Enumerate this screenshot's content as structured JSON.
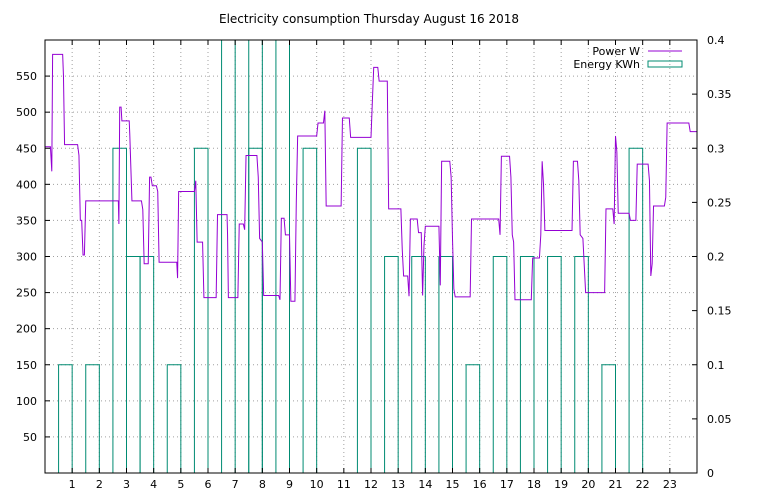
{
  "chart_data": {
    "type": "line",
    "title": "Electricity consumption Thursday August 16 2018",
    "grid": true,
    "legend_placement": "top-right",
    "x_ticks": [
      "1",
      "2",
      "3",
      "4",
      "5",
      "6",
      "7",
      "8",
      "9",
      "10",
      "11",
      "12",
      "13",
      "14",
      "15",
      "16",
      "17",
      "18",
      "19",
      "20",
      "21",
      "22",
      "23"
    ],
    "xlim": [
      0,
      24
    ],
    "y_ticks": [
      "50",
      "100",
      "150",
      "200",
      "250",
      "300",
      "350",
      "400",
      "450",
      "500",
      "550"
    ],
    "ylim": [
      0,
      600
    ],
    "y2_ticks": [
      "0",
      "0.05",
      "0.1",
      "0.15",
      "0.2",
      "0.25",
      "0.3",
      "0.35",
      "0.4"
    ],
    "y2lim": [
      0,
      0.4
    ],
    "series": [
      {
        "name": "Power W",
        "color": "#9400d3",
        "axis": "y",
        "points": [
          [
            0.0,
            452
          ],
          [
            0.2,
            452
          ],
          [
            0.25,
            418
          ],
          [
            0.28,
            580
          ],
          [
            0.65,
            580
          ],
          [
            0.68,
            550
          ],
          [
            0.72,
            455
          ],
          [
            1.2,
            455
          ],
          [
            1.25,
            440
          ],
          [
            1.3,
            350
          ],
          [
            1.35,
            350
          ],
          [
            1.4,
            302
          ],
          [
            1.45,
            302
          ],
          [
            1.5,
            377
          ],
          [
            2.7,
            377
          ],
          [
            2.72,
            345
          ],
          [
            2.75,
            507
          ],
          [
            2.8,
            507
          ],
          [
            2.83,
            488
          ],
          [
            3.1,
            488
          ],
          [
            3.12,
            470
          ],
          [
            3.2,
            377
          ],
          [
            3.55,
            377
          ],
          [
            3.6,
            365
          ],
          [
            3.65,
            290
          ],
          [
            3.8,
            290
          ],
          [
            3.85,
            410
          ],
          [
            3.9,
            410
          ],
          [
            3.95,
            398
          ],
          [
            4.1,
            398
          ],
          [
            4.15,
            390
          ],
          [
            4.2,
            292
          ],
          [
            4.85,
            292
          ],
          [
            4.88,
            270
          ],
          [
            4.92,
            390
          ],
          [
            5.5,
            390
          ],
          [
            5.55,
            405
          ],
          [
            5.6,
            320
          ],
          [
            5.8,
            320
          ],
          [
            5.85,
            243
          ],
          [
            6.3,
            243
          ],
          [
            6.35,
            358
          ],
          [
            6.7,
            358
          ],
          [
            6.72,
            330
          ],
          [
            6.75,
            243
          ],
          [
            7.1,
            243
          ],
          [
            7.15,
            345
          ],
          [
            7.3,
            345
          ],
          [
            7.35,
            337
          ],
          [
            7.4,
            440
          ],
          [
            7.8,
            440
          ],
          [
            7.85,
            410
          ],
          [
            7.9,
            325
          ],
          [
            8.0,
            320
          ],
          [
            8.05,
            246
          ],
          [
            8.6,
            246
          ],
          [
            8.65,
            240
          ],
          [
            8.7,
            353
          ],
          [
            8.8,
            353
          ],
          [
            8.85,
            330
          ],
          [
            9.0,
            330
          ],
          [
            9.05,
            238
          ],
          [
            9.2,
            238
          ],
          [
            9.25,
            375
          ],
          [
            9.3,
            467
          ],
          [
            10.0,
            467
          ],
          [
            10.05,
            485
          ],
          [
            10.25,
            485
          ],
          [
            10.3,
            502
          ],
          [
            10.35,
            370
          ],
          [
            10.9,
            370
          ],
          [
            10.95,
            492
          ],
          [
            11.2,
            492
          ],
          [
            11.25,
            465
          ],
          [
            12.0,
            465
          ],
          [
            12.05,
            515
          ],
          [
            12.1,
            562
          ],
          [
            12.25,
            562
          ],
          [
            12.3,
            543
          ],
          [
            12.6,
            543
          ],
          [
            12.65,
            366
          ],
          [
            13.1,
            366
          ],
          [
            13.15,
            310
          ],
          [
            13.2,
            273
          ],
          [
            13.35,
            273
          ],
          [
            13.4,
            245
          ],
          [
            13.45,
            352
          ],
          [
            13.7,
            352
          ],
          [
            13.75,
            333
          ],
          [
            13.85,
            333
          ],
          [
            13.9,
            246
          ],
          [
            13.95,
            315
          ],
          [
            14.0,
            342
          ],
          [
            14.5,
            342
          ],
          [
            14.55,
            260
          ],
          [
            14.6,
            432
          ],
          [
            14.9,
            432
          ],
          [
            14.95,
            410
          ],
          [
            15.0,
            325
          ],
          [
            15.05,
            255
          ],
          [
            15.1,
            244
          ],
          [
            15.65,
            244
          ],
          [
            15.7,
            352
          ],
          [
            16.7,
            352
          ],
          [
            16.75,
            330
          ],
          [
            16.8,
            439
          ],
          [
            17.1,
            439
          ],
          [
            17.15,
            410
          ],
          [
            17.2,
            330
          ],
          [
            17.25,
            320
          ],
          [
            17.3,
            240
          ],
          [
            17.9,
            240
          ],
          [
            17.95,
            298
          ],
          [
            18.2,
            298
          ],
          [
            18.25,
            330
          ],
          [
            18.3,
            432
          ],
          [
            18.35,
            400
          ],
          [
            18.4,
            336
          ],
          [
            19.4,
            336
          ],
          [
            19.45,
            432
          ],
          [
            19.6,
            432
          ],
          [
            19.65,
            405
          ],
          [
            19.7,
            330
          ],
          [
            19.8,
            325
          ],
          [
            19.9,
            250
          ],
          [
            20.6,
            250
          ],
          [
            20.65,
            366
          ],
          [
            20.9,
            366
          ],
          [
            20.95,
            345
          ],
          [
            21.0,
            467
          ],
          [
            21.05,
            445
          ],
          [
            21.1,
            360
          ],
          [
            21.5,
            360
          ],
          [
            21.55,
            350
          ],
          [
            21.75,
            350
          ],
          [
            21.8,
            428
          ],
          [
            22.2,
            428
          ],
          [
            22.25,
            405
          ],
          [
            22.3,
            273
          ],
          [
            22.35,
            290
          ],
          [
            22.4,
            370
          ],
          [
            22.8,
            370
          ],
          [
            22.85,
            382
          ],
          [
            22.9,
            485
          ],
          [
            23.7,
            485
          ],
          [
            23.75,
            473
          ],
          [
            24.0,
            473
          ]
        ]
      },
      {
        "name": "Energy KWh",
        "color": "#008b72",
        "axis": "y2",
        "bars": [
          {
            "x": 1,
            "value": 0.1
          },
          {
            "x": 2,
            "value": 0.1
          },
          {
            "x": 3,
            "value": 0.3
          },
          {
            "x": 3.5,
            "value": 0.2
          },
          {
            "x": 4,
            "value": 0.2
          },
          {
            "x": 5,
            "value": 0.1
          },
          {
            "x": 6,
            "value": 0.3
          },
          {
            "x": 7,
            "value": 0.4
          },
          {
            "x": 8,
            "value": 0.4
          },
          {
            "x": 8,
            "value": 0.3
          },
          {
            "x": 9,
            "value": 0.4
          },
          {
            "x": 10,
            "value": 0.3
          },
          {
            "x": 12,
            "value": 0.3
          },
          {
            "x": 13,
            "value": 0.2
          },
          {
            "x": 14,
            "value": 0.2
          },
          {
            "x": 15,
            "value": 0.2
          },
          {
            "x": 16,
            "value": 0.1
          },
          {
            "x": 17,
            "value": 0.2
          },
          {
            "x": 18,
            "value": 0.2
          },
          {
            "x": 19,
            "value": 0.2
          },
          {
            "x": 20,
            "value": 0.2
          },
          {
            "x": 21,
            "value": 0.1
          },
          {
            "x": 22,
            "value": 0.3
          }
        ]
      }
    ]
  }
}
